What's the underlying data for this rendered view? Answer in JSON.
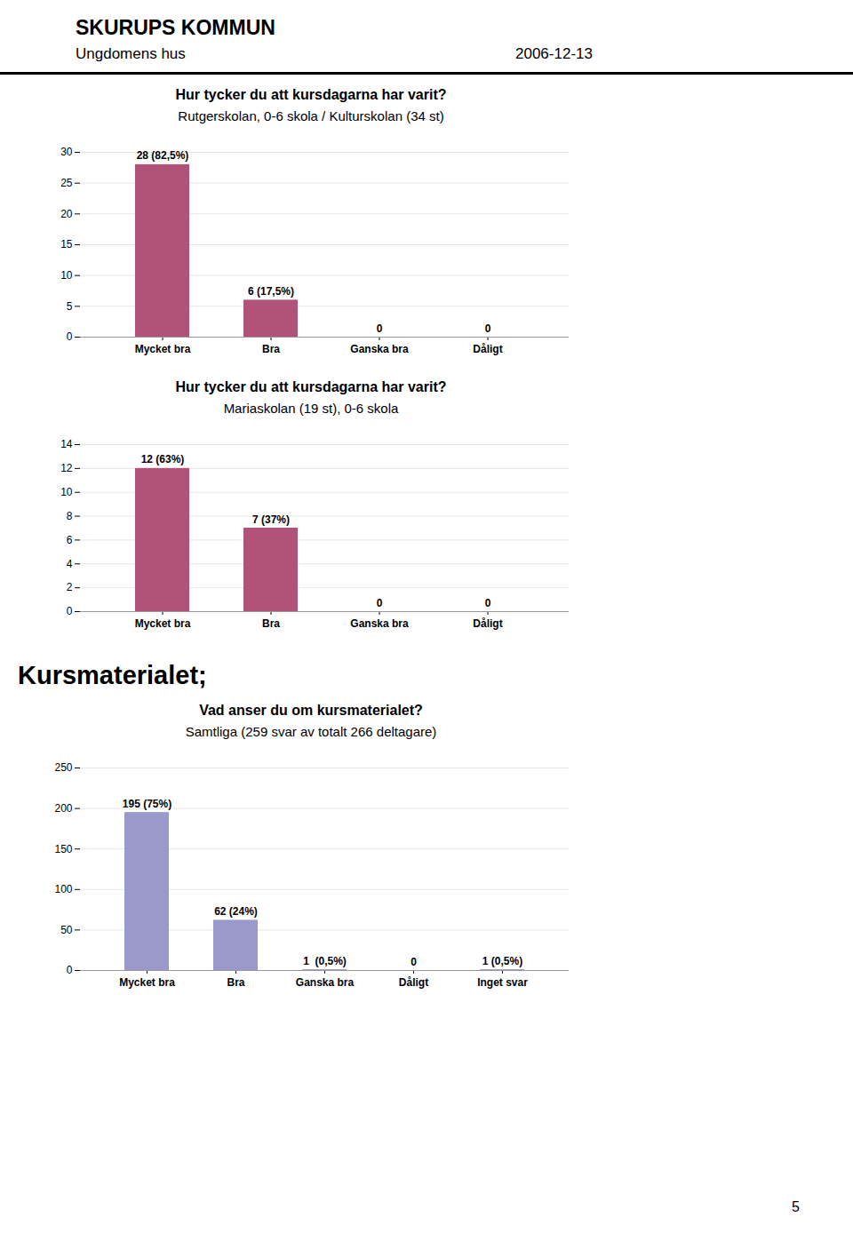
{
  "title": "SKURUPS KOMMUN",
  "subtitle": "Ungdomens hus",
  "annotations": [
    "2006-12-13",
    "Kursmaterialet;",
    "5"
  ],
  "chart_data": [
    {
      "type": "bar",
      "title": "Hur tycker du att kursdagarna har varit?",
      "subtitle": "Rutgerskolan, 0-6 skola / Kulturskolan (34 st)",
      "categories": [
        "Mycket bra",
        "Bra",
        "Ganska bra",
        "Dåligt"
      ],
      "values": [
        28,
        6,
        0,
        0
      ],
      "value_labels": [
        "28 (82,5%)",
        "6 (17,5%)",
        "0",
        "0"
      ],
      "data_labels": true,
      "color": "#B0527A",
      "ylim": [
        0,
        30
      ],
      "yticks": [
        0,
        5,
        10,
        15,
        20,
        25,
        30
      ],
      "grid": true
    },
    {
      "type": "bar",
      "title": "Hur tycker du att kursdagarna har varit?",
      "subtitle": "Mariaskolan (19 st), 0-6 skola",
      "categories": [
        "Mycket bra",
        "Bra",
        "Ganska bra",
        "Dåligt"
      ],
      "values": [
        12,
        7,
        0,
        0
      ],
      "value_labels": [
        "12 (63%)",
        "7 (37%)",
        "0",
        "0"
      ],
      "data_labels": true,
      "color": "#B0527A",
      "ylim": [
        0,
        14
      ],
      "yticks": [
        0,
        2,
        4,
        6,
        8,
        10,
        12,
        14
      ],
      "grid": true
    },
    {
      "type": "bar",
      "title": "Vad anser du om kursmaterialet?",
      "subtitle": "Samtliga (259 svar av totalt 266 deltagare)",
      "categories": [
        "Mycket bra",
        "Bra",
        "Ganska bra",
        "Dåligt",
        "Inget svar"
      ],
      "values": [
        195,
        62,
        1,
        0,
        1
      ],
      "value_labels": [
        "195 (75%)",
        "62 (24%)",
        "1  (0,5%)",
        "0",
        "1 (0,5%)"
      ],
      "data_labels": true,
      "color": "#9999CC",
      "ylim": [
        0,
        250
      ],
      "yticks": [
        0,
        50,
        100,
        150,
        200,
        250
      ],
      "grid": true
    }
  ]
}
